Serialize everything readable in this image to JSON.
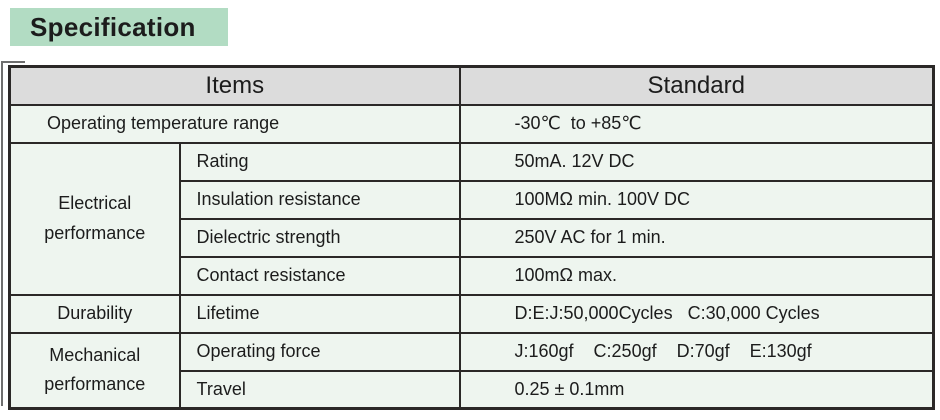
{
  "title": "Specification",
  "table": {
    "header": {
      "items": "Items",
      "standard": "Standard"
    },
    "rows": [
      {
        "item": "Operating temperature range",
        "standard": "-30℃  to +85℃"
      },
      {
        "group": "Electrical performance",
        "item": "Rating",
        "standard": "50mA. 12V DC"
      },
      {
        "item": "Insulation resistance",
        "standard": "100MΩ min. 100V DC"
      },
      {
        "item": "Dielectric strength",
        "standard": "250V AC for 1 min."
      },
      {
        "item": "Contact resistance",
        "standard": "100mΩ max."
      },
      {
        "group": "Durability",
        "item": "Lifetime",
        "standard": "D:E:J:50,000Cycles   C:30,000 Cycles"
      },
      {
        "group": "Mechanical performance",
        "item": "Operating force",
        "standard": "J:160gf    C:250gf    D:70gf    E:130gf"
      },
      {
        "item": "Travel",
        "standard": "0.25 ± 0.1mm"
      }
    ]
  },
  "colors": {
    "title_bg": "#b2dcc3",
    "header_bg": "#dcdcdc",
    "items_bg": "#eef5ef",
    "standard_bg": "#ffffff",
    "border": "#2b2827"
  }
}
